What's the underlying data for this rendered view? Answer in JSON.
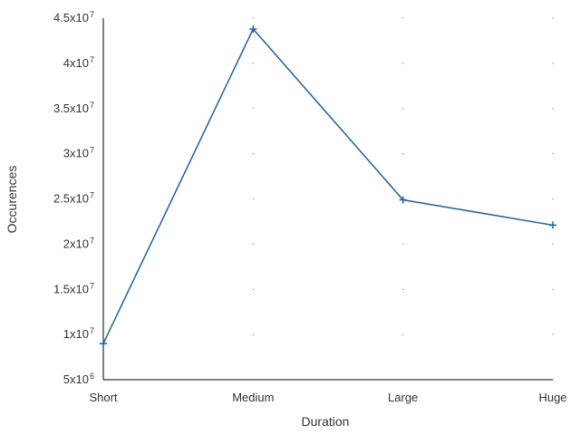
{
  "chart_data": {
    "type": "line",
    "categories": [
      "Short",
      "Medium",
      "Large",
      "Huge"
    ],
    "series": [
      {
        "values": [
          9000000,
          43800000,
          24900000,
          22100000
        ]
      }
    ],
    "xlabel": "Duration",
    "ylabel": "Occurences",
    "ylim": [
      5000000,
      45000000
    ],
    "yticks": [
      {
        "value": 5000000,
        "mantissa": "5",
        "exponent": "6"
      },
      {
        "value": 10000000,
        "mantissa": "1",
        "exponent": "7"
      },
      {
        "value": 15000000,
        "mantissa": "1.5",
        "exponent": "7"
      },
      {
        "value": 20000000,
        "mantissa": "2",
        "exponent": "7"
      },
      {
        "value": 25000000,
        "mantissa": "2.5",
        "exponent": "7"
      },
      {
        "value": 30000000,
        "mantissa": "3",
        "exponent": "7"
      },
      {
        "value": 35000000,
        "mantissa": "3.5",
        "exponent": "7"
      },
      {
        "value": 40000000,
        "mantissa": "4",
        "exponent": "7"
      },
      {
        "value": 45000000,
        "mantissa": "4.5",
        "exponent": "7"
      }
    ],
    "line_color": "#1f5fa0",
    "axis_color": "#000000",
    "grid": "dotted-points",
    "marker": "plus",
    "legend": "none"
  }
}
